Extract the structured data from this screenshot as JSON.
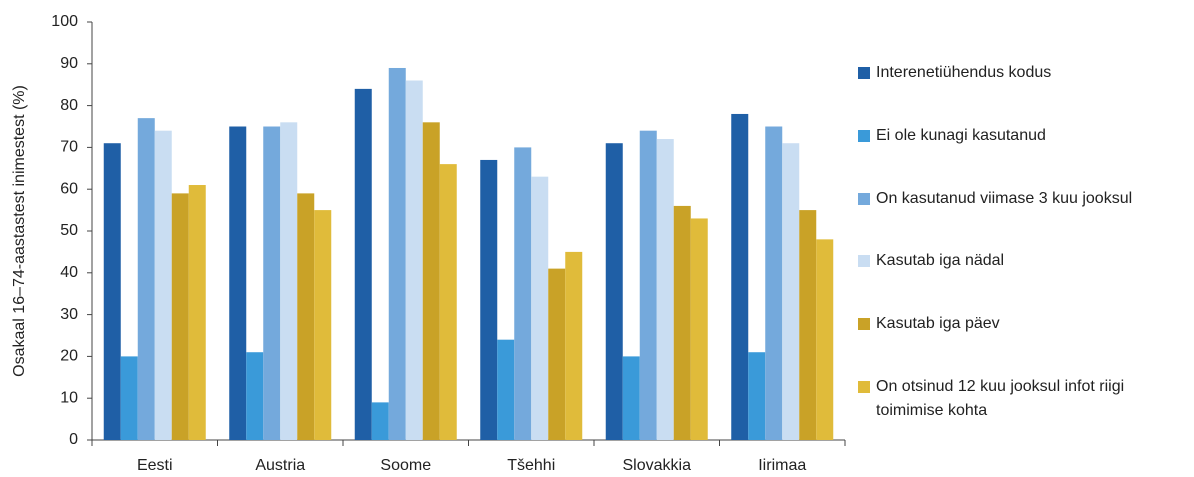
{
  "chart_data": {
    "type": "bar",
    "y_label": "Osakaal 16–74-aastastest inimestest (%)",
    "categories": [
      "Eesti",
      "Austria",
      "Soome",
      "Tšehhi",
      "Slovakkia",
      "Iirimaa"
    ],
    "series": [
      {
        "name": "Interenetiühendus kodus",
        "color": "#1f5fa6",
        "values": [
          71,
          75,
          84,
          67,
          71,
          78
        ]
      },
      {
        "name": "Ei ole kunagi kasutanud",
        "color": "#3a9ad9",
        "values": [
          20,
          21,
          9,
          24,
          20,
          21
        ]
      },
      {
        "name": "On kasutanud viimase 3 kuu jooksul",
        "color": "#74a9dc",
        "values": [
          77,
          75,
          89,
          70,
          74,
          75
        ]
      },
      {
        "name": "Kasutab iga nädal",
        "color": "#c9ddf2",
        "values": [
          74,
          76,
          86,
          63,
          72,
          71
        ]
      },
      {
        "name": "Kasutab iga päev",
        "color": "#c9a227",
        "values": [
          59,
          59,
          76,
          41,
          56,
          55
        ]
      },
      {
        "name": "On otsinud 12 kuu jooksul infot riigi toimimise kohta",
        "color": "#e0bb3a",
        "values": [
          61,
          55,
          66,
          45,
          53,
          48
        ]
      }
    ],
    "ylim": [
      0,
      100
    ],
    "yticks": [
      0,
      10,
      20,
      30,
      40,
      50,
      60,
      70,
      80,
      90,
      100
    ]
  }
}
